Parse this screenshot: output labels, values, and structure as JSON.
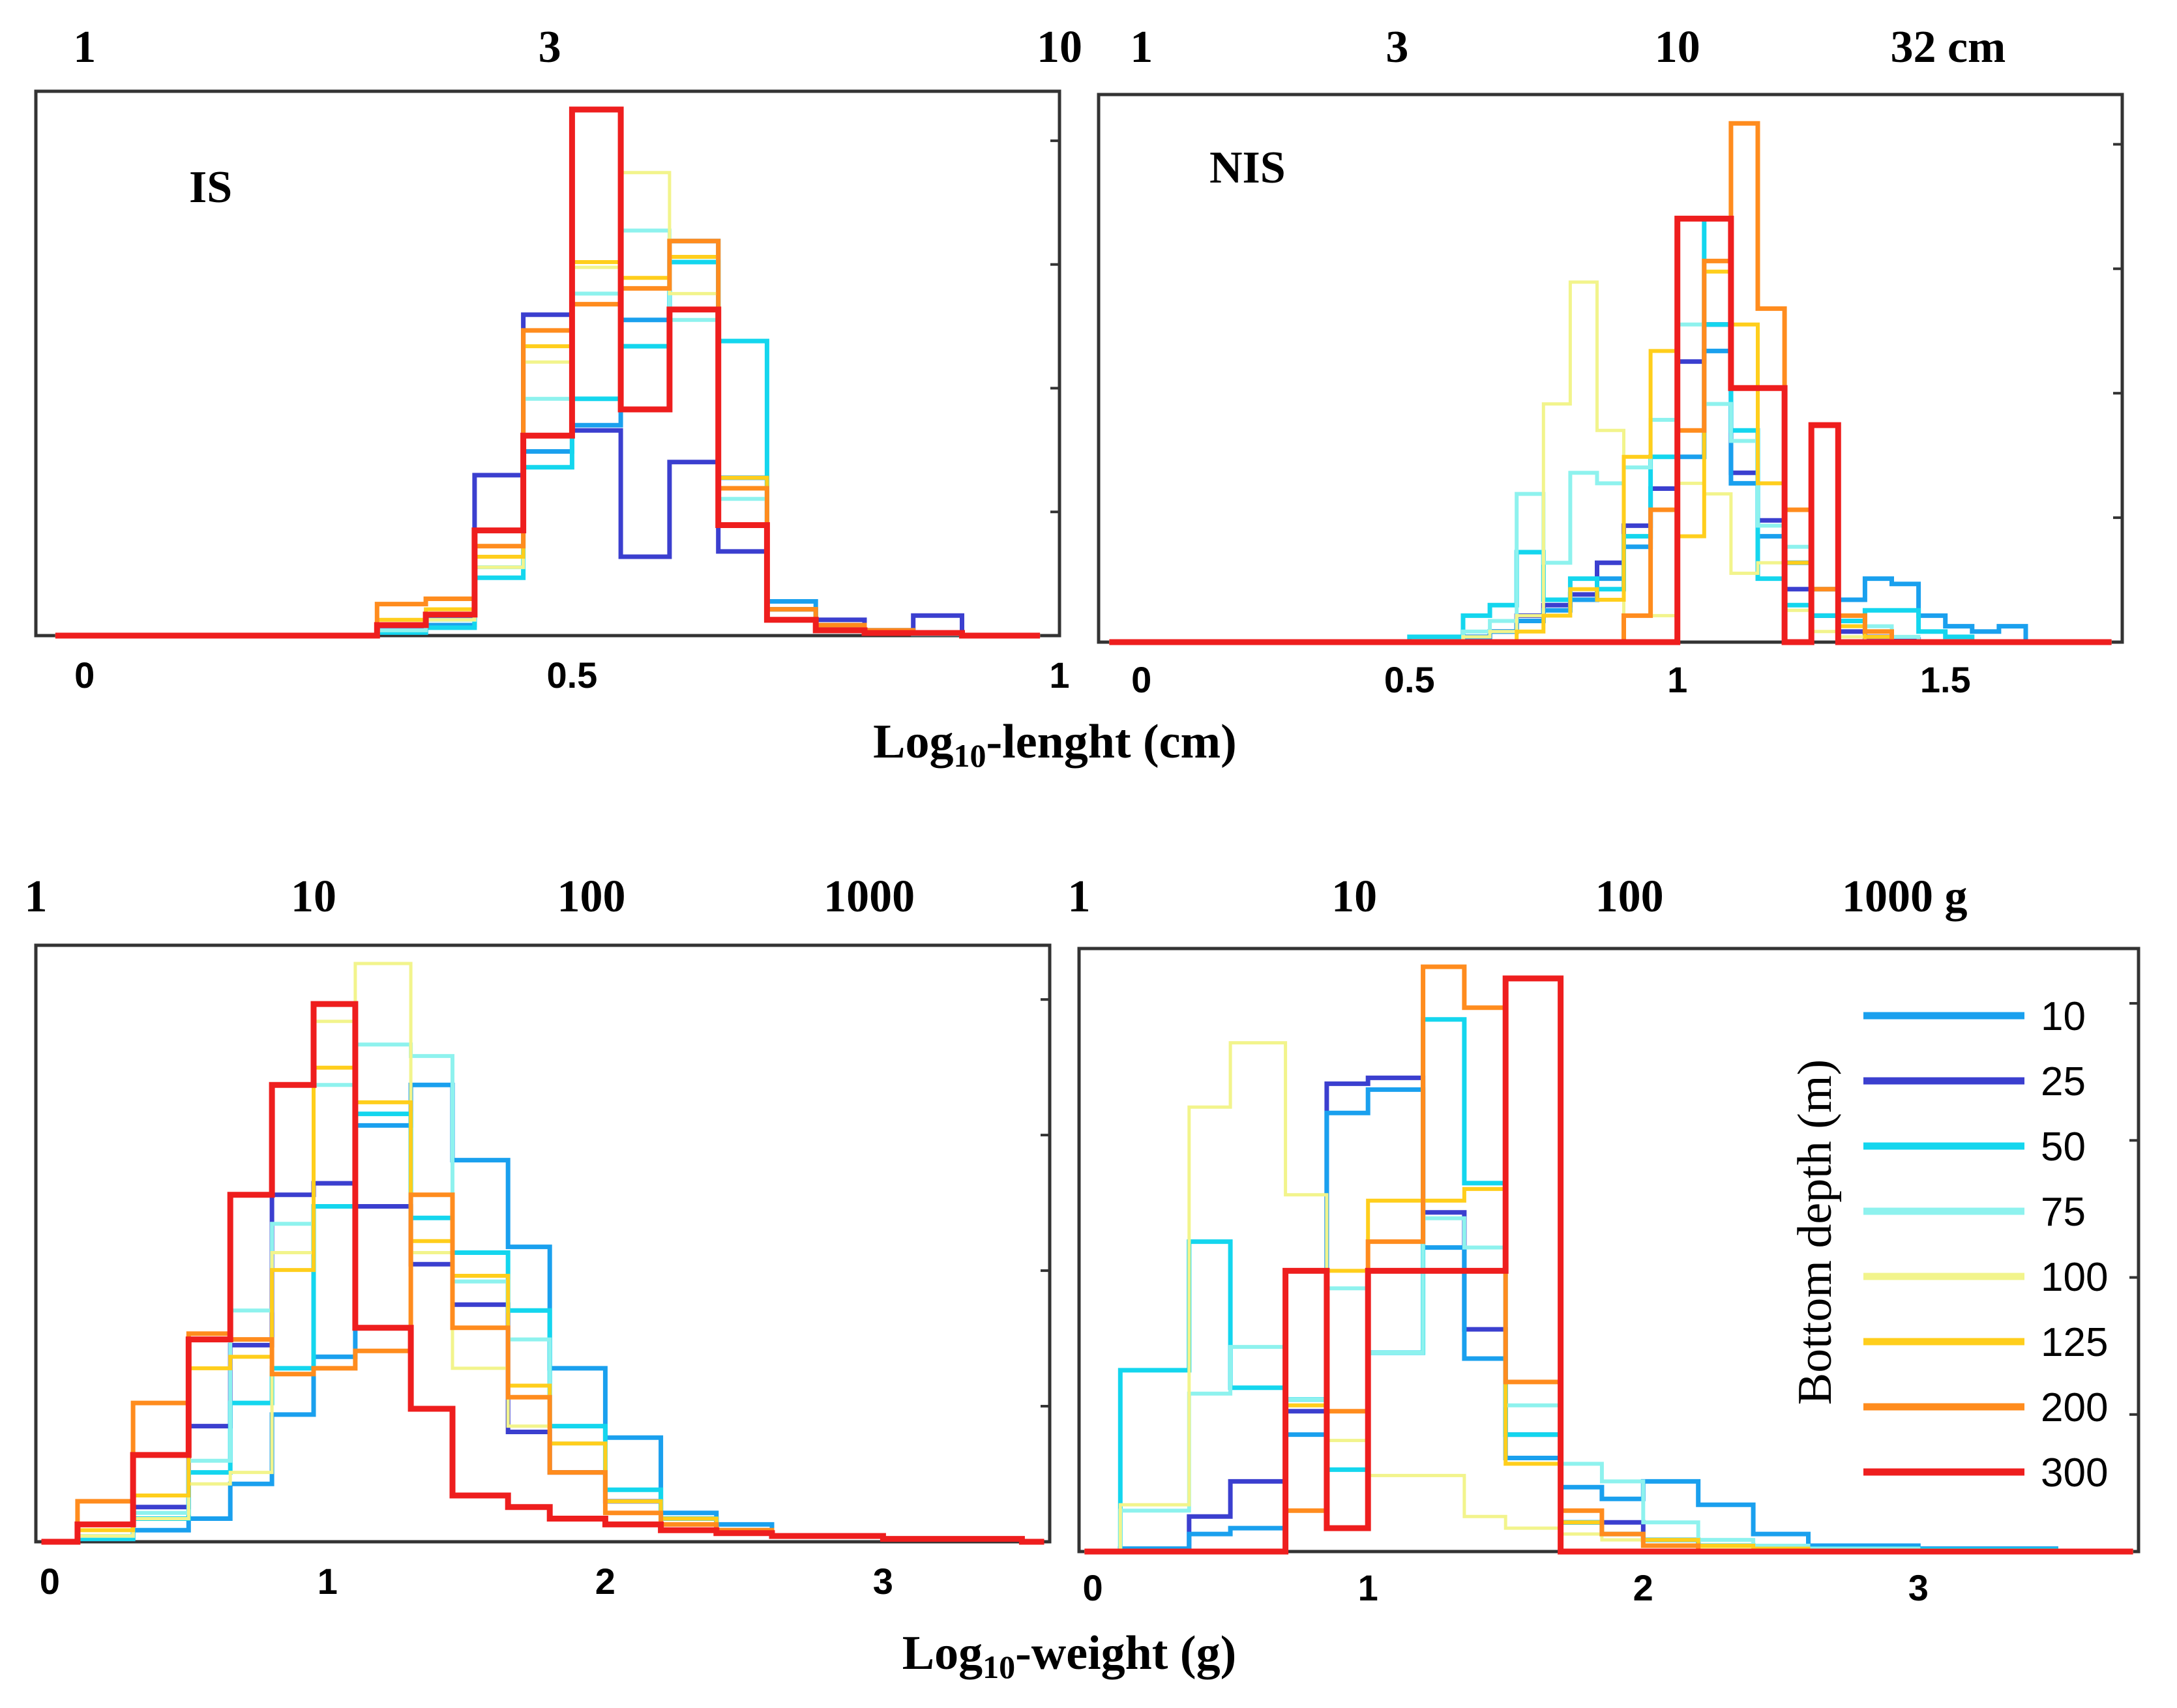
{
  "series_colors": {
    "10": "#1aa0ee",
    "25": "#3b3fcf",
    "50": "#14d6ee",
    "75": "#8ef2ee",
    "100": "#f2f48c",
    "125": "#ffce1c",
    "200": "#ff8c1e",
    "300": "#ee1e1e"
  },
  "x_labels": {
    "length": "Log10-lenght (cm)",
    "length_parts": [
      "Log",
      "10",
      "-lenght (cm)"
    ],
    "weight": "Log10-weight (g)",
    "weight_parts": [
      "Log",
      "10",
      "-weight (g)"
    ]
  },
  "legend": {
    "title": "Bottom depth (m)",
    "entries": [
      "10",
      "25",
      "50",
      "75",
      "100",
      "125",
      "200",
      "300"
    ]
  },
  "chart_data": [
    {
      "id": "is_length",
      "type": "histogram-step",
      "label": "IS",
      "xlim": [
        -0.05,
        1.0
      ],
      "ylim": [
        0,
        1.0
      ],
      "bottom_ticks": [
        0,
        0.5,
        1
      ],
      "bottom_tick_labels": [
        "0",
        "0.5",
        "1"
      ],
      "top_ticks": [
        0,
        0.4771,
        1
      ],
      "top_tick_labels": [
        "1",
        "3",
        "10"
      ],
      "bin_edges": [
        0.3,
        0.35,
        0.4,
        0.45,
        0.5,
        0.55,
        0.6,
        0.65,
        0.7,
        0.75,
        0.8,
        0.85,
        0.9
      ],
      "series": [
        {
          "name": "10",
          "values": [
            0.006,
            0.02,
            0.2,
            0.35,
            0.4,
            0.6,
            0.75,
            0.3,
            0.065,
            0.02,
            0.01,
            0.005
          ]
        },
        {
          "name": "25",
          "values": [
            0.01,
            0.035,
            0.305,
            0.61,
            0.39,
            0.15,
            0.33,
            0.16,
            0.05,
            0.03,
            0.01,
            0.038
          ]
        },
        {
          "name": "50",
          "values": [
            0.006,
            0.015,
            0.11,
            0.32,
            0.45,
            0.55,
            0.71,
            0.56,
            0.05,
            0.01,
            0.005,
            0.003
          ]
        },
        {
          "name": "75",
          "values": [
            0.01,
            0.03,
            0.13,
            0.45,
            0.65,
            0.77,
            0.6,
            0.26,
            0.05,
            0.02,
            0.01,
            0.005
          ]
        },
        {
          "name": "100",
          "values": [
            0.02,
            0.03,
            0.13,
            0.52,
            0.7,
            0.88,
            0.65,
            0.3,
            0.05,
            0.02,
            0.01,
            0.005
          ]
        },
        {
          "name": "125",
          "values": [
            0.03,
            0.05,
            0.15,
            0.55,
            0.71,
            0.68,
            0.72,
            0.3,
            0.05,
            0.02,
            0.01,
            0.005
          ]
        },
        {
          "name": "200",
          "values": [
            0.06,
            0.07,
            0.17,
            0.58,
            0.63,
            0.66,
            0.75,
            0.28,
            0.05,
            0.02,
            0.01,
            0.005
          ]
        },
        {
          "name": "300",
          "values": [
            0.02,
            0.04,
            0.2,
            0.38,
            1.0,
            0.43,
            0.62,
            0.21,
            0.03,
            0.01,
            0.005,
            0.005
          ]
        }
      ]
    },
    {
      "id": "nis_length",
      "type": "histogram-step",
      "label": "NIS",
      "xlim": [
        -0.08,
        1.83
      ],
      "ylim": [
        0,
        1.0
      ],
      "bottom_ticks": [
        0,
        0.5,
        1,
        1.5
      ],
      "bottom_tick_labels": [
        "0",
        "0.5",
        "1",
        "1.5"
      ],
      "top_ticks": [
        0,
        0.4771,
        1,
        1.5051
      ],
      "top_tick_labels": [
        "1",
        "3",
        "10",
        "32 cm"
      ],
      "bin_edges": [
        0.5,
        0.6,
        0.65,
        0.7,
        0.75,
        0.8,
        0.85,
        0.9,
        0.95,
        1.0,
        1.05,
        1.1,
        1.15,
        1.2,
        1.25,
        1.3,
        1.35,
        1.4,
        1.45,
        1.5,
        1.55,
        1.6,
        1.65,
        1.7
      ],
      "series": [
        {
          "name": "10",
          "values": [
            0.0,
            0.01,
            0.02,
            0.04,
            0.06,
            0.08,
            0.12,
            0.18,
            0.25,
            0.35,
            0.55,
            0.3,
            0.2,
            0.15,
            0.1,
            0.08,
            0.12,
            0.11,
            0.05,
            0.03,
            0.02,
            0.03,
            0.0
          ]
        },
        {
          "name": "25",
          "values": [
            0.0,
            0.01,
            0.02,
            0.05,
            0.07,
            0.09,
            0.15,
            0.22,
            0.29,
            0.53,
            0.6,
            0.32,
            0.23,
            0.1,
            0.05,
            0.02,
            0.01,
            0.005,
            0.0,
            0.0,
            0.0,
            0.0,
            0.0
          ]
        },
        {
          "name": "50",
          "values": [
            0.01,
            0.05,
            0.07,
            0.17,
            0.08,
            0.12,
            0.1,
            0.2,
            0.35,
            0.8,
            0.6,
            0.4,
            0.12,
            0.07,
            0.05,
            0.04,
            0.06,
            0.06,
            0.02,
            0.01,
            0.0,
            0.0,
            0.0
          ]
        },
        {
          "name": "75",
          "values": [
            0.0,
            0.02,
            0.04,
            0.28,
            0.15,
            0.32,
            0.3,
            0.33,
            0.42,
            0.6,
            0.45,
            0.38,
            0.22,
            0.18,
            0.1,
            0.05,
            0.03,
            0.01,
            0.0,
            0.0,
            0.0,
            0.0,
            0.0
          ]
        },
        {
          "name": "100",
          "values": [
            0.0,
            0.01,
            0.02,
            0.05,
            0.45,
            0.68,
            0.4,
            0.05,
            0.05,
            0.3,
            0.28,
            0.13,
            0.15,
            0.06,
            0.02,
            0.01,
            0.0,
            0.0,
            0.0,
            0.0,
            0.0,
            0.0,
            0.0
          ]
        },
        {
          "name": "125",
          "values": [
            0.0,
            0.0,
            0.0,
            0.02,
            0.05,
            0.1,
            0.08,
            0.35,
            0.55,
            0.2,
            0.7,
            0.6,
            0.3,
            0.15,
            0.1,
            0.03,
            0.01,
            0.0,
            0.0,
            0.0,
            0.0,
            0.0,
            0.0
          ]
        },
        {
          "name": "200",
          "values": [
            0.0,
            0.0,
            0.0,
            0.0,
            0.0,
            0.0,
            0.0,
            0.05,
            0.25,
            0.4,
            0.72,
            0.98,
            0.63,
            0.25,
            0.1,
            0.05,
            0.02,
            0.0,
            0.0,
            0.0,
            0.0,
            0.0,
            0.0
          ]
        },
        {
          "name": "300",
          "values": [
            0.0,
            0.0,
            0.0,
            0.0,
            0.0,
            0.0,
            0.0,
            0.0,
            0.0,
            0.8,
            0.8,
            0.48,
            0.48,
            0.0,
            0.41,
            0.0,
            0.0,
            0.0,
            0.0,
            0.0,
            0.0,
            0.0,
            0.0
          ]
        }
      ]
    },
    {
      "id": "is_weight",
      "type": "histogram-step",
      "label": "",
      "xlim": [
        -0.05,
        3.6
      ],
      "ylim": [
        0,
        1.0
      ],
      "bottom_ticks": [
        0,
        1,
        2,
        3
      ],
      "bottom_tick_labels": [
        "0",
        "1",
        "2",
        "3"
      ],
      "top_ticks": [
        -0.05,
        0.95,
        1.95,
        2.95
      ],
      "top_tick_labels": [
        "1",
        "10",
        "100",
        "1000"
      ],
      "bin_edges": [
        0.1,
        0.3,
        0.5,
        0.65,
        0.8,
        0.95,
        1.1,
        1.3,
        1.45,
        1.65,
        1.8,
        2.0,
        2.2,
        2.4,
        2.6,
        3.0,
        3.5
      ],
      "series": [
        {
          "name": "10",
          "values": [
            0.006,
            0.02,
            0.04,
            0.1,
            0.22,
            0.32,
            0.72,
            0.79,
            0.66,
            0.51,
            0.3,
            0.18,
            0.05,
            0.03,
            0.01,
            0.005
          ]
        },
        {
          "name": "25",
          "values": [
            0.005,
            0.06,
            0.2,
            0.34,
            0.6,
            0.62,
            0.58,
            0.48,
            0.41,
            0.19,
            0.12,
            0.07,
            0.04,
            0.02,
            0.01,
            0.005
          ]
        },
        {
          "name": "50",
          "values": [
            0.005,
            0.04,
            0.12,
            0.24,
            0.3,
            0.58,
            0.74,
            0.56,
            0.5,
            0.4,
            0.2,
            0.09,
            0.04,
            0.02,
            0.01,
            0.005
          ]
        },
        {
          "name": "75",
          "values": [
            0.01,
            0.05,
            0.14,
            0.4,
            0.55,
            0.79,
            0.86,
            0.84,
            0.45,
            0.35,
            0.17,
            0.07,
            0.04,
            0.02,
            0.01,
            0.005
          ]
        },
        {
          "name": "100",
          "values": [
            0.01,
            0.04,
            0.1,
            0.12,
            0.5,
            0.9,
            1.0,
            0.5,
            0.3,
            0.2,
            0.12,
            0.05,
            0.03,
            0.015,
            0.01,
            0.005
          ]
        },
        {
          "name": "125",
          "values": [
            0.02,
            0.08,
            0.3,
            0.32,
            0.47,
            0.82,
            0.76,
            0.52,
            0.46,
            0.27,
            0.17,
            0.07,
            0.04,
            0.02,
            0.01,
            0.005
          ]
        },
        {
          "name": "200",
          "values": [
            0.07,
            0.24,
            0.36,
            0.35,
            0.29,
            0.3,
            0.33,
            0.6,
            0.37,
            0.25,
            0.12,
            0.05,
            0.03,
            0.02,
            0.01,
            0.005
          ]
        },
        {
          "name": "300",
          "values": [
            0.03,
            0.15,
            0.35,
            0.6,
            0.79,
            0.93,
            0.37,
            0.23,
            0.08,
            0.06,
            0.04,
            0.03,
            0.02,
            0.015,
            0.01,
            0.005
          ]
        }
      ]
    },
    {
      "id": "nis_weight",
      "type": "histogram-step",
      "label": "",
      "xlim": [
        -0.05,
        3.8
      ],
      "ylim": [
        0,
        1.0
      ],
      "bottom_ticks": [
        0,
        1,
        2,
        3
      ],
      "bottom_tick_labels": [
        "0",
        "1",
        "2",
        "3"
      ],
      "top_ticks": [
        -0.05,
        0.95,
        1.95,
        2.95
      ],
      "top_tick_labels": [
        "1",
        "10",
        "100",
        "1000 g"
      ],
      "bin_edges": [
        0.1,
        0.35,
        0.5,
        0.7,
        0.85,
        1.0,
        1.2,
        1.35,
        1.5,
        1.7,
        1.85,
        2.0,
        2.2,
        2.4,
        2.6,
        3.0,
        3.5
      ],
      "series": [
        {
          "name": "10",
          "values": [
            0.005,
            0.03,
            0.04,
            0.2,
            0.75,
            0.79,
            0.52,
            0.33,
            0.16,
            0.11,
            0.09,
            0.12,
            0.08,
            0.03,
            0.01,
            0.005
          ]
        },
        {
          "name": "25",
          "values": [
            0.005,
            0.06,
            0.12,
            0.24,
            0.8,
            0.81,
            0.58,
            0.38,
            0.2,
            0.05,
            0.05,
            0.02,
            0.01,
            0.005,
            0.0,
            0.0
          ]
        },
        {
          "name": "50",
          "values": [
            0.31,
            0.53,
            0.28,
            0.26,
            0.14,
            0.34,
            0.91,
            0.63,
            0.2,
            0.05,
            0.03,
            0.02,
            0.01,
            0.005,
            0.005,
            0.003
          ]
        },
        {
          "name": "75",
          "values": [
            0.07,
            0.27,
            0.35,
            0.26,
            0.45,
            0.34,
            0.57,
            0.52,
            0.25,
            0.15,
            0.12,
            0.05,
            0.02,
            0.01,
            0.005,
            0.0
          ]
        },
        {
          "name": "100",
          "values": [
            0.08,
            0.76,
            0.87,
            0.61,
            0.19,
            0.13,
            0.13,
            0.06,
            0.04,
            0.03,
            0.02,
            0.01,
            0.005,
            0.0,
            0.0,
            0.0
          ]
        },
        {
          "name": "125",
          "values": [
            0.0,
            0.0,
            0.0,
            0.25,
            0.48,
            0.6,
            0.6,
            0.62,
            0.15,
            0.05,
            0.03,
            0.02,
            0.01,
            0.005,
            0.0,
            0.0
          ]
        },
        {
          "name": "200",
          "values": [
            0.0,
            0.0,
            0.0,
            0.07,
            0.24,
            0.53,
            1.0,
            0.93,
            0.29,
            0.07,
            0.03,
            0.01,
            0.0,
            0.0,
            0.0,
            0.0
          ]
        },
        {
          "name": "300",
          "values": [
            0.0,
            0.0,
            0.0,
            0.48,
            0.04,
            0.48,
            0.48,
            0.48,
            0.98,
            0.0,
            0.0,
            0.0,
            0.0,
            0.0,
            0.0,
            0.0
          ]
        }
      ]
    }
  ]
}
